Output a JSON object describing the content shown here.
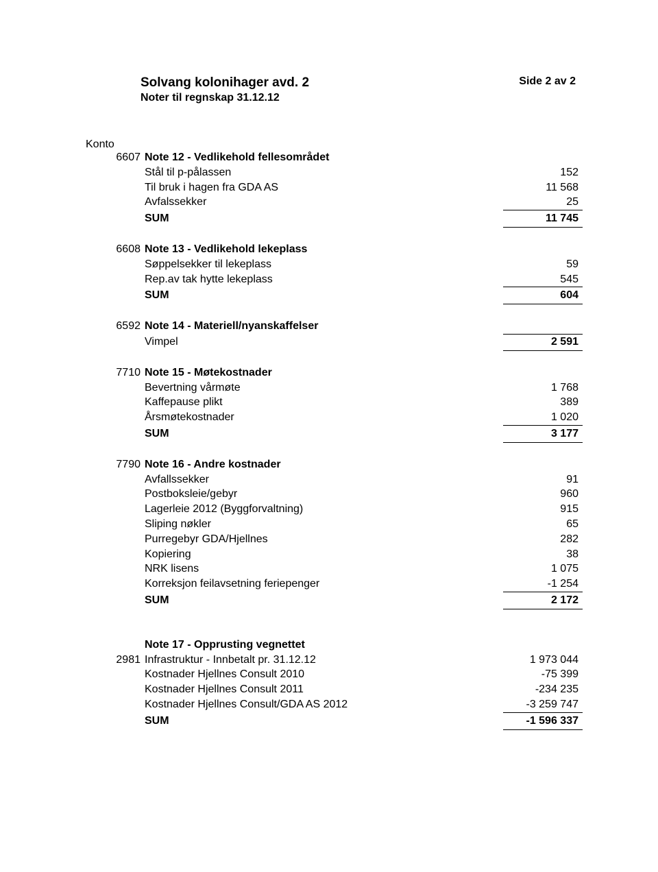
{
  "header": {
    "title": "Solvang kolonihager avd. 2",
    "subtitle": "Noter til regnskap 31.12.12",
    "page_info": "Side 2 av 2"
  },
  "konto_header": "Konto",
  "sections": [
    {
      "konto": "6607",
      "title": "Note 12 - Vedlikehold fellesområdet",
      "lines": [
        {
          "label": "Stål til p-pålassen",
          "amount": "152"
        },
        {
          "label": "Til bruk i hagen fra GDA AS",
          "amount": "11 568"
        },
        {
          "label": "Avfalssekker",
          "amount": "25"
        }
      ],
      "sum_label": "SUM",
      "sum": "11 745"
    },
    {
      "konto": "6608",
      "title": "Note 13 - Vedlikehold lekeplass",
      "lines": [
        {
          "label": "Søppelsekker til lekeplass",
          "amount": "59"
        },
        {
          "label": "Rep.av tak hytte lekeplass",
          "amount": "545"
        }
      ],
      "sum_label": "SUM",
      "sum": "604"
    },
    {
      "konto": "6592",
      "title": "Note 14 - Materiell/nyanskaffelser",
      "single_line": {
        "label": "Vimpel",
        "amount": "2 591"
      }
    },
    {
      "konto": "7710",
      "title": "Note 15 - Møtekostnader",
      "lines": [
        {
          "label": "Bevertning vårmøte",
          "amount": "1 768"
        },
        {
          "label": "Kaffepause plikt",
          "amount": "389"
        },
        {
          "label": "Årsmøtekostnader",
          "amount": "1 020"
        }
      ],
      "sum_label": "SUM",
      "sum": "3 177"
    },
    {
      "konto": "7790",
      "title": "Note 16 - Andre kostnader",
      "lines": [
        {
          "label": "Avfallssekker",
          "amount": "91"
        },
        {
          "label": "Postboksleie/gebyr",
          "amount": "960"
        },
        {
          "label": "Lagerleie 2012 (Byggforvaltning)",
          "amount": "915"
        },
        {
          "label": "Sliping nøkler",
          "amount": "65"
        },
        {
          "label": "Purregebyr GDA/Hjellnes",
          "amount": "282"
        },
        {
          "label": "Kopiering",
          "amount": "38"
        },
        {
          "label": "NRK lisens",
          "amount": "1 075"
        },
        {
          "label": "Korreksjon feilavsetning feriepenger",
          "amount": "-1 254"
        }
      ],
      "sum_label": "SUM",
      "sum": "2 172"
    },
    {
      "konto_on_first_line": "2981",
      "title": "Note 17 - Opprusting vegnettet",
      "lines": [
        {
          "label": "Infrastruktur - Innbetalt pr. 31.12.12",
          "amount": "1 973 044"
        },
        {
          "label": "Kostnader Hjellnes Consult 2010",
          "amount": "-75 399"
        },
        {
          "label": "Kostnader Hjellnes Consult 2011",
          "amount": "-234 235"
        },
        {
          "label": "Kostnader Hjellnes Consult/GDA AS 2012",
          "amount": "-3 259 747"
        }
      ],
      "sum_label": "SUM",
      "sum": "-1 596 337"
    }
  ]
}
